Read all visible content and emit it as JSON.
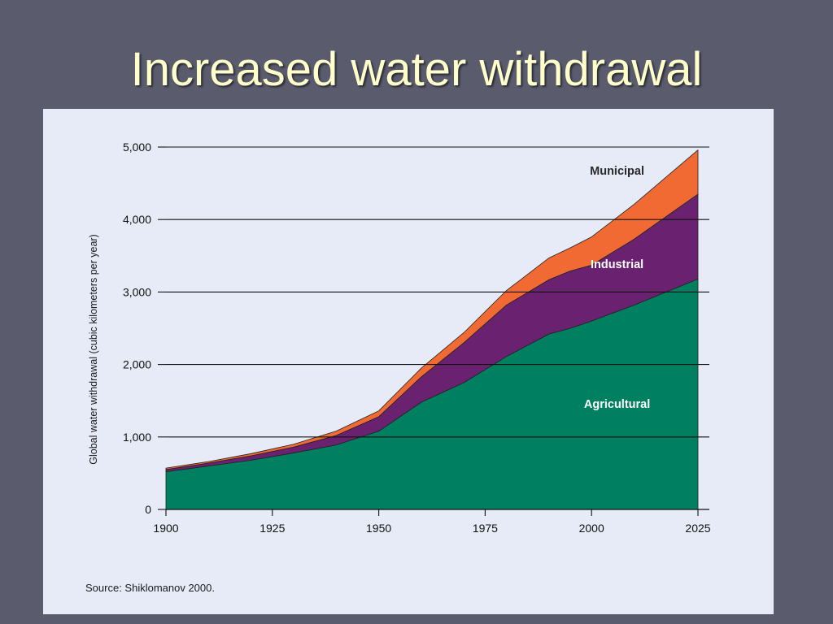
{
  "slide": {
    "title": "Increased water withdrawal"
  },
  "chart_data": {
    "type": "area",
    "stacked": true,
    "ylabel": "Global water withdrawal (cubic kilometers per year)",
    "xlabel": "",
    "xlim": [
      1900,
      2025
    ],
    "ylim": [
      0,
      5000
    ],
    "x_ticks": [
      "1900",
      "1925",
      "1950",
      "1975",
      "2000",
      "2025"
    ],
    "y_ticks": [
      "0",
      "1,000",
      "2,000",
      "3,000",
      "4,000",
      "5,000"
    ],
    "grid": true,
    "x": [
      1900,
      1910,
      1920,
      1930,
      1940,
      1950,
      1960,
      1970,
      1980,
      1990,
      1995,
      2000,
      2010,
      2025
    ],
    "series": [
      {
        "name": "Agricultural",
        "color": "#008060",
        "values": [
          520,
          600,
          680,
          780,
          890,
          1080,
          1480,
          1750,
          2110,
          2420,
          2500,
          2600,
          2820,
          3180
        ]
      },
      {
        "name": "Industrial",
        "color": "#6a2270",
        "values": [
          30,
          40,
          60,
          80,
          130,
          200,
          350,
          550,
          710,
          750,
          790,
          770,
          910,
          1170
        ]
      },
      {
        "name": "Municipal",
        "color": "#f26a33",
        "values": [
          20,
          20,
          30,
          40,
          60,
          80,
          120,
          140,
          200,
          300,
          320,
          390,
          480,
          610
        ]
      }
    ],
    "annotations": [
      {
        "text": "Municipal",
        "series": "Municipal",
        "x": 2006,
        "y": 4620,
        "color": "#2a2a2a"
      },
      {
        "text": "Industrial",
        "series": "Industrial",
        "x": 2006,
        "y": 3330,
        "color": "#ffffff"
      },
      {
        "text": "Agricultural",
        "series": "Agricultural",
        "x": 2006,
        "y": 1400,
        "color": "#ffffff"
      }
    ],
    "source": "Source: Shiklomanov 2000."
  }
}
